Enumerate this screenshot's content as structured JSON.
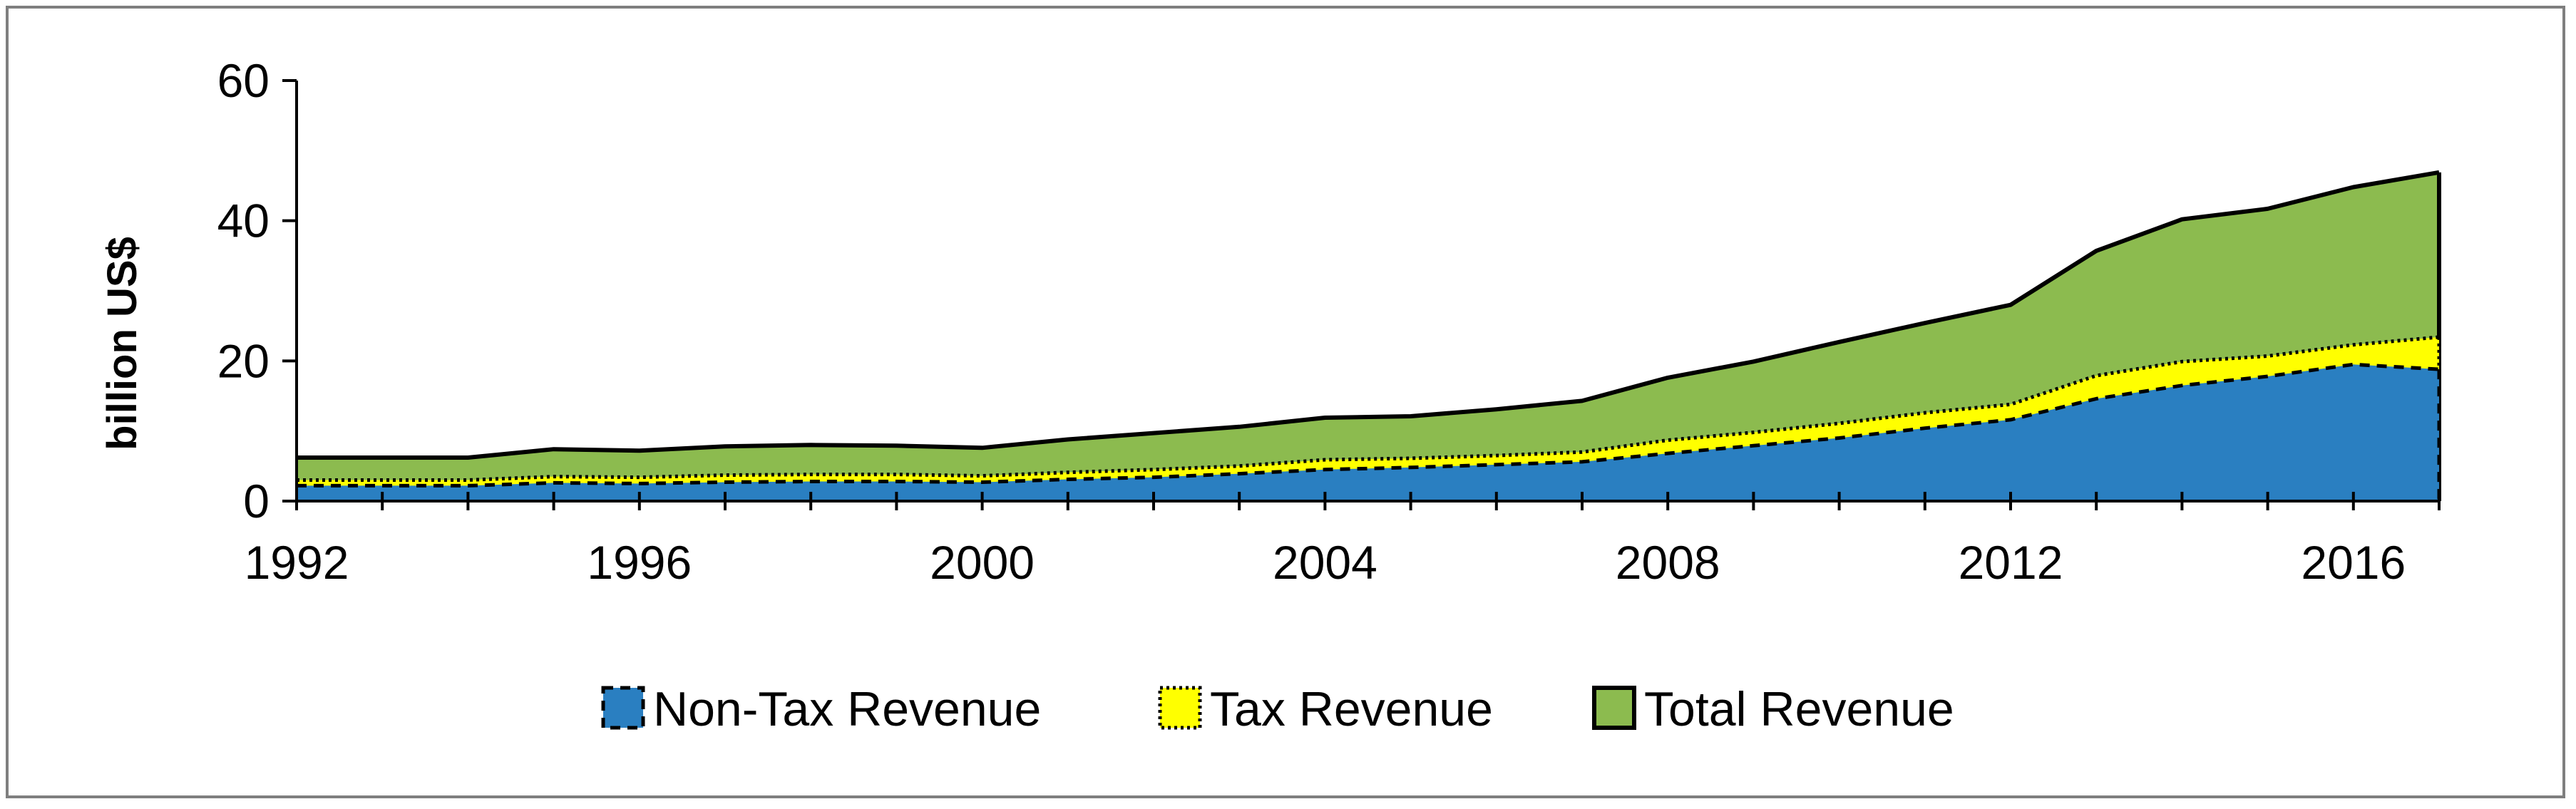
{
  "chart_data": {
    "type": "area",
    "title": "",
    "xlabel": "",
    "ylabel": "billion US$",
    "ylim": [
      0,
      60
    ],
    "xlim": [
      1992,
      2017
    ],
    "yticks": [
      "0",
      "20",
      "40",
      "60"
    ],
    "xticks": [
      "1992",
      "1996",
      "2000",
      "2004",
      "2008",
      "2012",
      "2016"
    ],
    "x": [
      1992,
      1993,
      1994,
      1995,
      1996,
      1997,
      1998,
      1999,
      2000,
      2001,
      2002,
      2003,
      2004,
      2005,
      2006,
      2007,
      2008,
      2009,
      2010,
      2011,
      2012,
      2013,
      2014,
      2015,
      2016,
      2017
    ],
    "series": [
      {
        "name": "Total Revenue",
        "color": "#8cbb4f",
        "values": [
          6.2,
          6.2,
          6.2,
          7.4,
          7.2,
          7.8,
          8.0,
          7.9,
          7.6,
          8.8,
          9.7,
          10.6,
          11.9,
          12.1,
          13.1,
          14.3,
          17.6,
          19.9,
          22.7,
          25.4,
          28.0,
          35.7,
          40.2,
          41.7,
          44.8,
          46.9
        ]
      },
      {
        "name": "Tax Revenue",
        "color": "#ffff00",
        "values": [
          3.0,
          3.0,
          3.0,
          3.5,
          3.4,
          3.7,
          3.8,
          3.8,
          3.6,
          4.1,
          4.5,
          5.0,
          5.9,
          6.1,
          6.5,
          7.0,
          8.7,
          9.8,
          11.1,
          12.6,
          13.8,
          17.9,
          19.9,
          20.7,
          22.3,
          23.4
        ]
      },
      {
        "name": "Non-Tax Revenue",
        "color": "#2a7fc1",
        "values": [
          2.2,
          2.2,
          2.2,
          2.6,
          2.5,
          2.7,
          2.8,
          2.8,
          2.7,
          3.1,
          3.4,
          3.9,
          4.5,
          4.8,
          5.2,
          5.6,
          6.8,
          7.9,
          9.0,
          10.4,
          11.6,
          14.6,
          16.5,
          17.8,
          19.5,
          18.8
        ]
      }
    ],
    "legend": {
      "position": "bottom",
      "entries": [
        {
          "label": "Non-Tax Revenue",
          "color": "#2a7fc1",
          "style": "dashed"
        },
        {
          "label": "Tax Revenue",
          "color": "#ffff00",
          "style": "dotted"
        },
        {
          "label": "Total Revenue",
          "color": "#8cbb4f",
          "style": "solid"
        }
      ]
    }
  }
}
